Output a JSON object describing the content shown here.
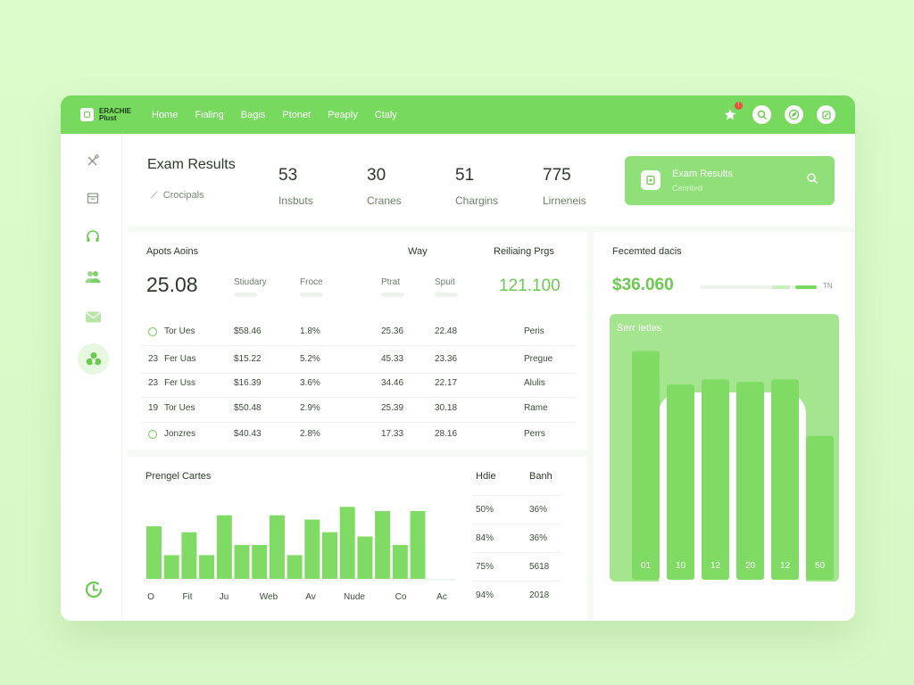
{
  "brand": {
    "name_line1": "ERACHIE",
    "name_line2": "Plust"
  },
  "nav": [
    "Home",
    "Fialing",
    "Bagis",
    "Ptonet",
    "Peaply",
    "Ctaly"
  ],
  "notifications_badge": "!",
  "header": {
    "title": "Exam Results",
    "subtitle": "Crocipals",
    "stats": [
      {
        "value": "53",
        "label": "Insbuts"
      },
      {
        "value": "30",
        "label": "Cranes"
      },
      {
        "value": "51",
        "label": "Chargins"
      },
      {
        "value": "775",
        "label": "Lirneneis"
      }
    ],
    "search_card": {
      "title": "Exam Results",
      "subtitle": "Cenrited"
    }
  },
  "table": {
    "heading": "Apots Aoins",
    "heading_mid": "Way",
    "heading_right": "Reiliaing Prgs",
    "big_value": "25.08",
    "green_value": "121.100",
    "columns": [
      "Stiudary",
      "Froce",
      "Ptrat",
      "Spuit"
    ],
    "rows": [
      {
        "num": "",
        "name": "Tor Ues",
        "c1": "$58.46",
        "c2": "1.8%",
        "c3": "25.36",
        "c4": "22.48",
        "c5": "Peris"
      },
      {
        "num": "23",
        "name": "Fer Uas",
        "c1": "$15.22",
        "c2": "5.2%",
        "c3": "45.33",
        "c4": "23.36",
        "c5": "Pregue"
      },
      {
        "num": "23",
        "name": "Fer Uss",
        "c1": "$16.39",
        "c2": "3.6%",
        "c3": "34.46",
        "c4": "22.17",
        "c5": "Alulis"
      },
      {
        "num": "19",
        "name": "Tor Ues",
        "c1": "$50.48",
        "c2": "2.9%",
        "c3": "25.39",
        "c4": "30.18",
        "c5": "Rame"
      },
      {
        "num": "",
        "name": "Jonzres",
        "c1": "$40.43",
        "c2": "2.8%",
        "c3": "17.33",
        "c4": "28.16",
        "c5": "Perrs"
      }
    ]
  },
  "right_panel": {
    "title": "Fecemted dacis",
    "price": "$36.060",
    "end_label": "TN",
    "chart_title": "Serr Ietles"
  },
  "bottom": {
    "heading": "Prengel Cartes",
    "side_headers": [
      "Hdie",
      "Banh"
    ],
    "side_rows": [
      [
        "50%",
        "36%"
      ],
      [
        "84%",
        "36%"
      ],
      [
        "75%",
        "5618"
      ],
      [
        "94%",
        "2018"
      ]
    ]
  },
  "colors": {
    "accent": "#77d95d",
    "accent_light": "#a6e590",
    "bar": "#7fdb64",
    "text": "#2b3a2b"
  },
  "chart_data": [
    {
      "type": "bar",
      "title": "Prengel Cartes",
      "categories": [
        "O",
        "",
        "Fit",
        "",
        "Ju",
        "",
        "Web",
        "",
        "Av",
        "",
        "Nude",
        "",
        "Co",
        "",
        "Ac",
        ""
      ],
      "x_labels": [
        "O",
        "Fit",
        "Ju",
        "Web",
        "Av",
        "Nude",
        "Co",
        "Ac"
      ],
      "values": [
        62,
        28,
        55,
        28,
        75,
        40,
        40,
        75,
        28,
        70,
        55,
        85,
        50,
        80,
        40,
        80
      ],
      "ylim": [
        0,
        100
      ]
    },
    {
      "type": "bar",
      "title": "Serr Ietles",
      "categories": [
        "01",
        "10",
        "12",
        "20",
        "12",
        "50"
      ],
      "values": [
        89,
        76,
        78,
        77,
        78,
        56
      ],
      "ylim": [
        0,
        100
      ]
    }
  ]
}
